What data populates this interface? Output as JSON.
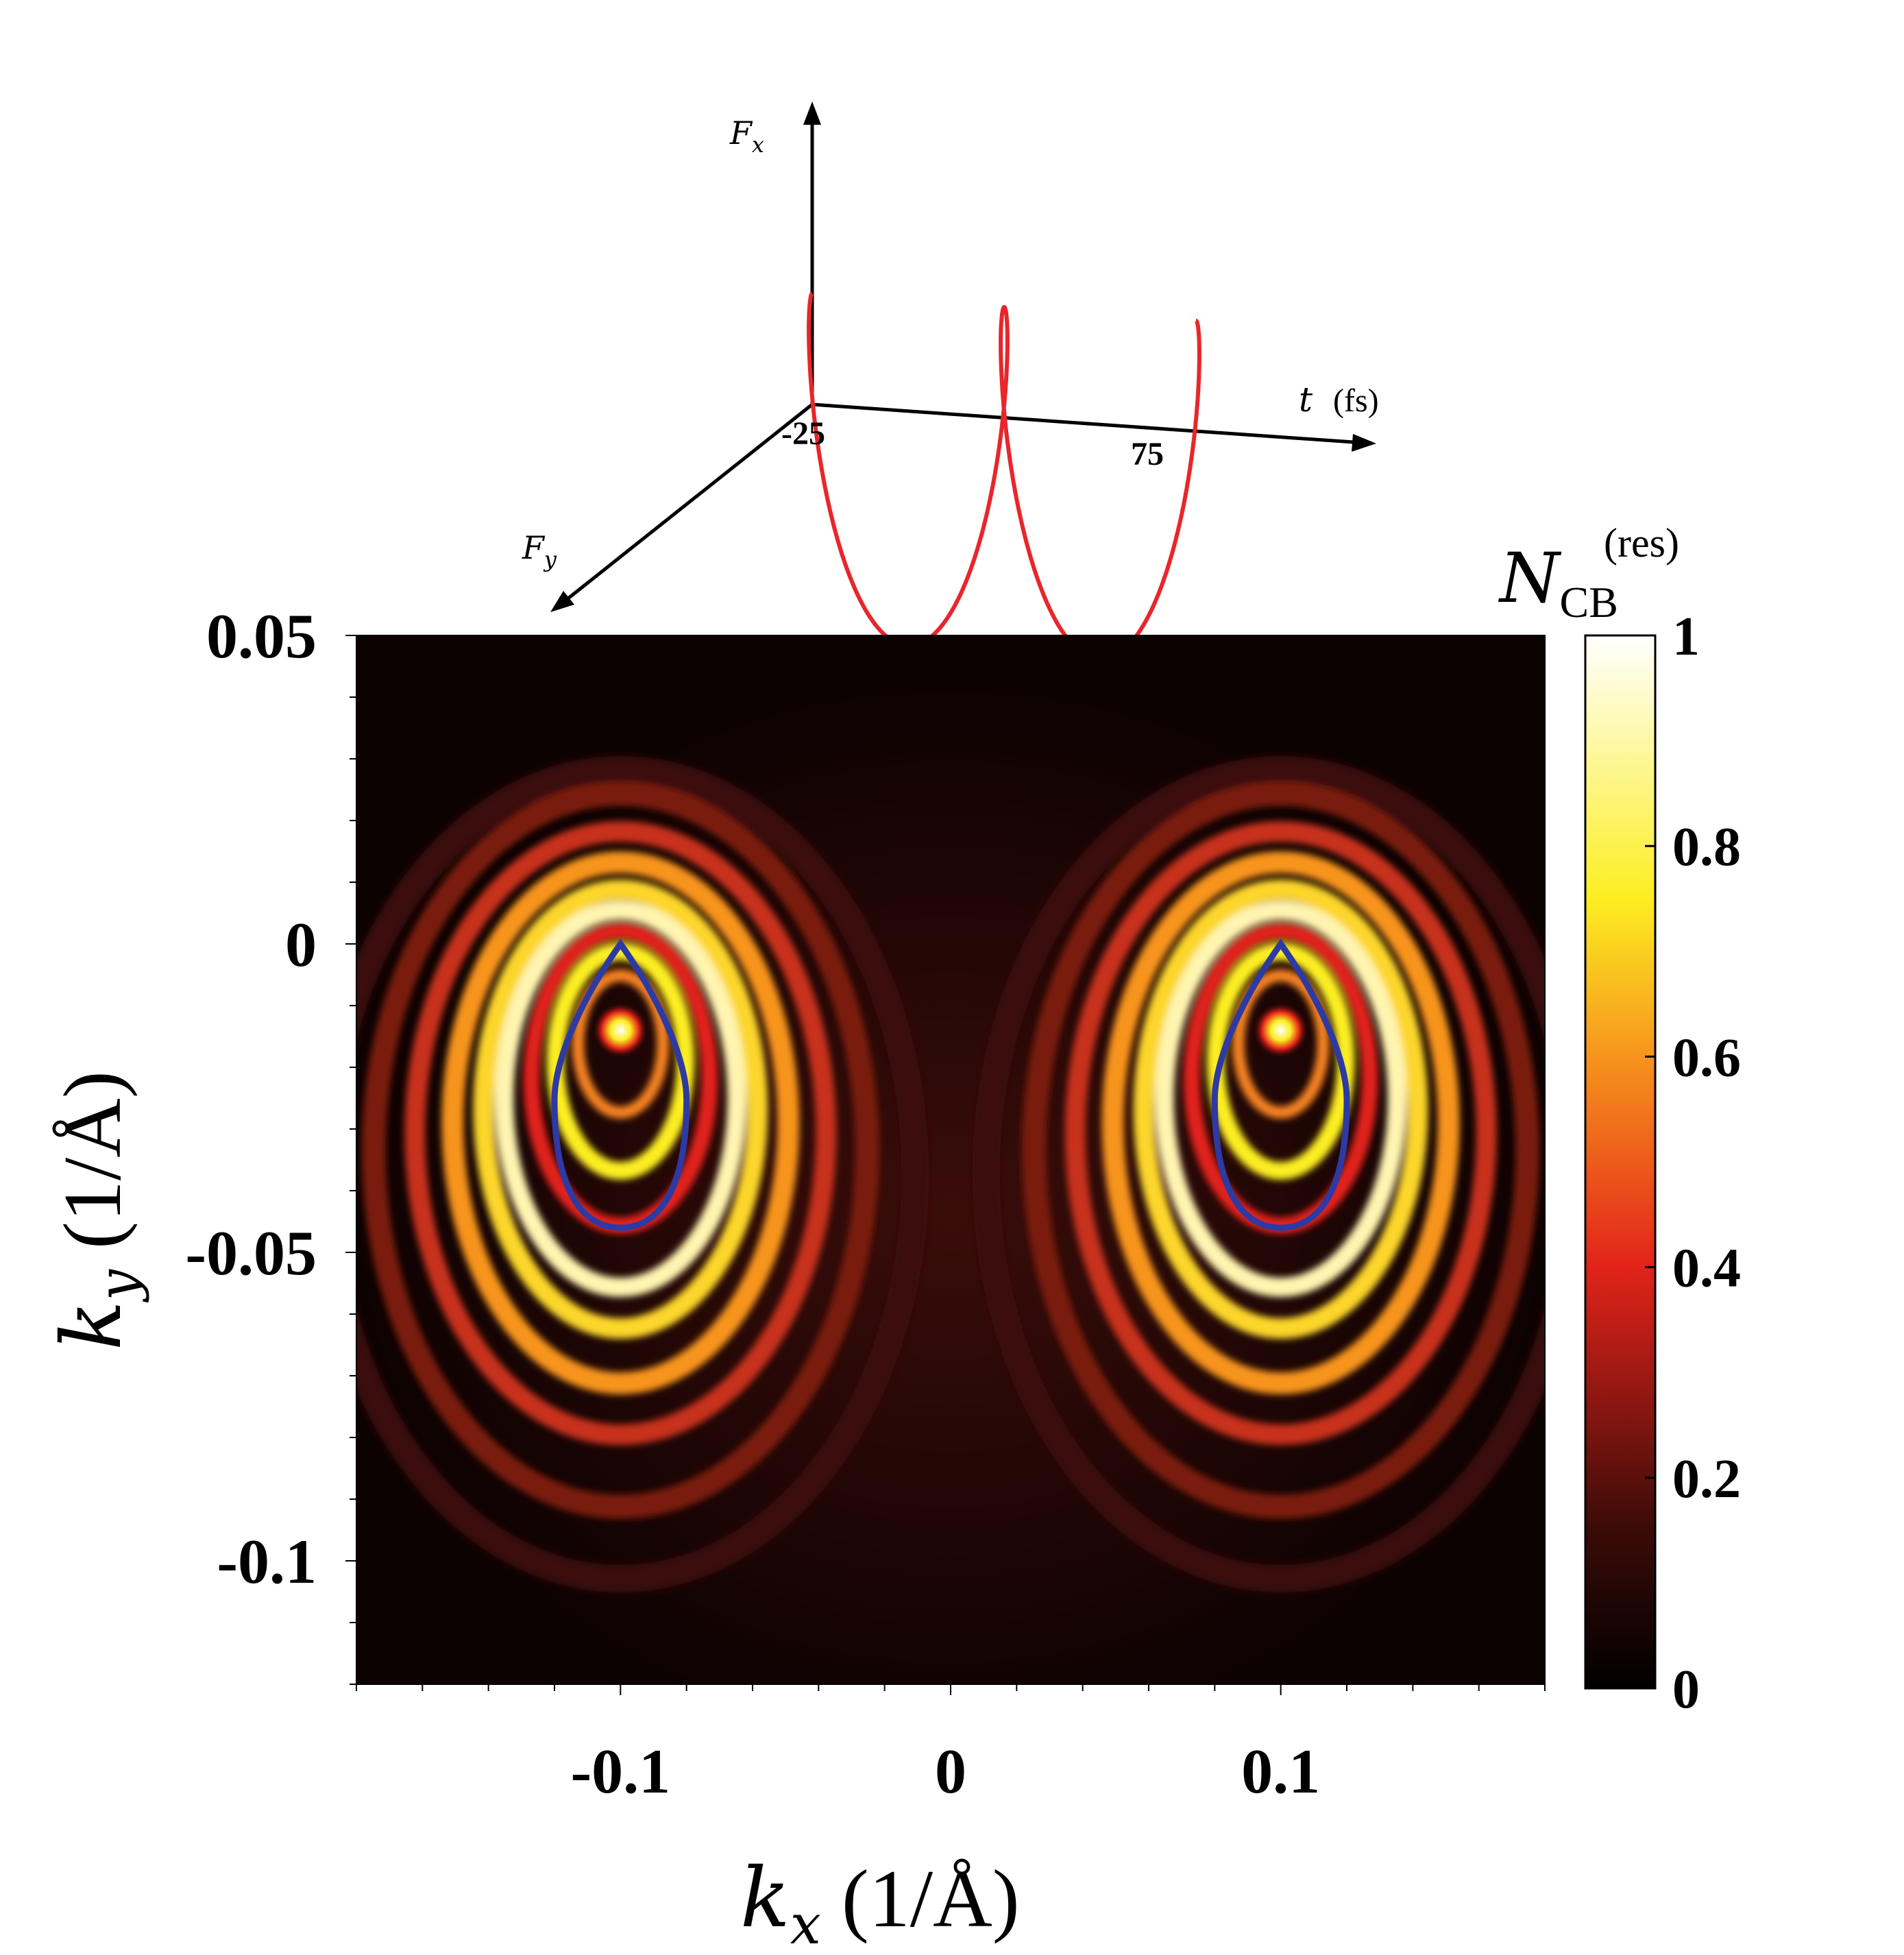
{
  "inset": {
    "axis_labels": {
      "fx": "F",
      "fx_sub": "x",
      "fy": "F",
      "fy_sub": "y",
      "t": "t",
      "t_unit": "(fs)"
    },
    "tick_labels": [
      "-25",
      "75"
    ],
    "curve_color": "#e8262b",
    "axis_color": "#000000"
  },
  "chart_data": {
    "type": "heatmap",
    "xlabel": {
      "symbol": "k",
      "sub": "x",
      "unit": "(1/Å)"
    },
    "ylabel": {
      "symbol": "k",
      "sub": "y",
      "unit": "(1/Å)"
    },
    "xlim": [
      -0.18,
      0.18
    ],
    "ylim": [
      -0.12,
      0.05
    ],
    "x_ticks": [
      {
        "value": -0.1,
        "label": "-0.1"
      },
      {
        "value": 0,
        "label": "0"
      },
      {
        "value": 0.1,
        "label": "0.1"
      }
    ],
    "y_ticks": [
      {
        "value": 0.05,
        "label": "0.05"
      },
      {
        "value": 0,
        "label": "0"
      },
      {
        "value": -0.05,
        "label": "-0.05"
      },
      {
        "value": -0.1,
        "label": "-0.1"
      }
    ],
    "colorbar": {
      "title": "N",
      "title_sub": "CB",
      "title_sup": "(res)",
      "range": [
        0,
        1
      ],
      "ticks": [
        {
          "value": 0,
          "label": "0"
        },
        {
          "value": 0.2,
          "label": "0.2"
        },
        {
          "value": 0.4,
          "label": "0.4"
        },
        {
          "value": 0.6,
          "label": "0.6"
        },
        {
          "value": 0.8,
          "label": "0.8"
        },
        {
          "value": 1,
          "label": "1"
        }
      ],
      "colormap": "hot",
      "stops": [
        {
          "v": 0.0,
          "color": "#000000"
        },
        {
          "v": 0.15,
          "color": "#3a0b08"
        },
        {
          "v": 0.4,
          "color": "#e2231a"
        },
        {
          "v": 0.6,
          "color": "#f7941d"
        },
        {
          "v": 0.75,
          "color": "#fcee21"
        },
        {
          "v": 1.0,
          "color": "#ffffff"
        }
      ]
    },
    "hotspots": [
      {
        "kx": -0.1,
        "ky": -0.014
      },
      {
        "kx": 0.1,
        "ky": -0.014
      }
    ],
    "overlay_contours": {
      "color": "#2e3aa3",
      "centers": [
        {
          "kx": -0.1,
          "top_ky": 0.0,
          "bottom_ky": -0.046,
          "half_width_kx": 0.02
        },
        {
          "kx": 0.1,
          "top_ky": 0.0,
          "bottom_ky": -0.046,
          "half_width_kx": 0.02
        }
      ]
    }
  }
}
